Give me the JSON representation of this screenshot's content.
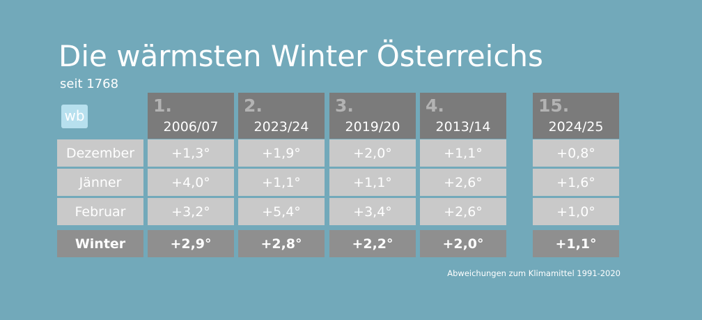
{
  "header": {
    "title": "Die wärmsten Winter Österreichs",
    "subtitle": "seit 1768",
    "logo": "wb"
  },
  "table": {
    "columns": [
      {
        "rank": "1.",
        "season": "2006/07"
      },
      {
        "rank": "2.",
        "season": "2023/24"
      },
      {
        "rank": "3.",
        "season": "2019/20"
      },
      {
        "rank": "4.",
        "season": "2013/14"
      },
      {
        "rank": "15.",
        "season": "2024/25"
      }
    ],
    "rows": [
      {
        "label": "Dezember",
        "values": [
          "+1,3°",
          "+1,9°",
          "+2,0°",
          "+1,1°",
          "+0,8°"
        ]
      },
      {
        "label": "Jänner",
        "values": [
          "+4,0°",
          "+1,1°",
          "+1,1°",
          "+2,6°",
          "+1,6°"
        ]
      },
      {
        "label": "Februar",
        "values": [
          "+3,2°",
          "+5,4°",
          "+3,4°",
          "+2,6°",
          "+1,0°"
        ]
      },
      {
        "label": "Winter",
        "values": [
          "+2,9°",
          "+2,8°",
          "+2,2°",
          "+2,0°",
          "+1,1°"
        ]
      }
    ]
  },
  "footnote": "Abweichungen zum Klimamittel 1991-2020"
}
